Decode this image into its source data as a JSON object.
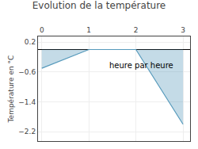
{
  "chart_data": {
    "type": "area",
    "title": "Evolution de la température",
    "ylabel": "Température en °C",
    "annotation": "heure par heure",
    "x": [
      0,
      1,
      2,
      3
    ],
    "values": [
      -0.5,
      0.0,
      0.0,
      -2.0
    ],
    "color": "#5599bb",
    "xlim": [
      -0.08,
      3.15
    ],
    "xticks": [
      0,
      1,
      2,
      3
    ],
    "ylim": [
      -2.45,
      0.35
    ],
    "yticks": [
      0.2,
      -0.6,
      -1.4,
      -2.2
    ],
    "grid": true
  }
}
